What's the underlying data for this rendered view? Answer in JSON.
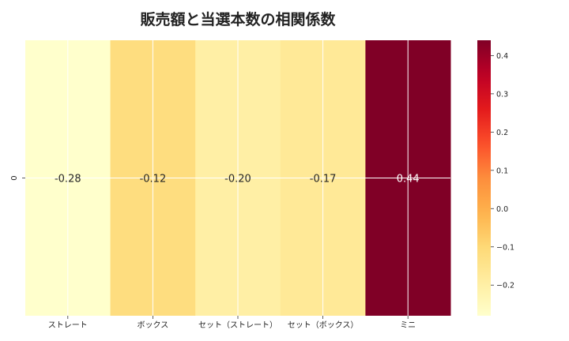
{
  "chart_data": {
    "type": "heatmap",
    "title": "販売額と当選本数の相関係数",
    "columns": [
      "ストレート",
      "ボックス",
      "セット（ストレート）",
      "セット（ボックス）",
      "ミニ"
    ],
    "rows": [
      "0"
    ],
    "values": [
      [
        -0.28,
        -0.12,
        -0.2,
        -0.17,
        0.44
      ]
    ],
    "value_labels": [
      "-0.28",
      "-0.12",
      "-0.20",
      "-0.17",
      "0.44"
    ],
    "colormap": "YlOrRd",
    "grid": true,
    "colorbar": {
      "position": "right",
      "range": [
        -0.28,
        0.44
      ],
      "ticks": [
        0.4,
        0.3,
        0.2,
        0.1,
        0.0,
        -0.1,
        -0.2
      ],
      "tick_labels": [
        "0.4",
        "0.3",
        "0.2",
        "0.1",
        "0.0",
        "−0.1",
        "−0.2"
      ]
    }
  }
}
